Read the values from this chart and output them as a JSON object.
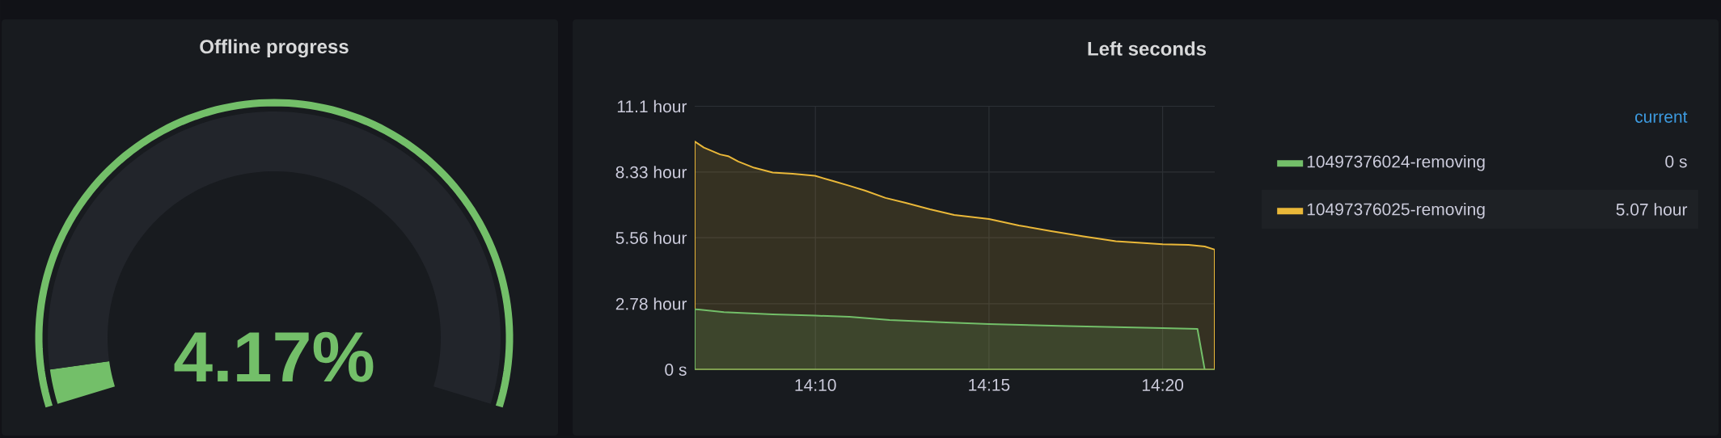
{
  "chart_data": [
    {
      "type": "donut",
      "title": "Offline progress",
      "categories": [
        null,
        null
      ],
      "values": [
        4.17,
        95.83
      ],
      "colors": [
        "#73bf69",
        "#22252b"
      ],
      "annotations": [
        "4.17%"
      ]
    },
    {
      "type": "area",
      "title": "Left seconds",
      "legend": "right",
      "legend_title": "current",
      "grid": true,
      "xlim": [
        14.1088,
        14.3583
      ],
      "xticks": [
        {
          "value": 14.1667,
          "label": "14:10"
        },
        {
          "value": 14.25,
          "label": "14:15"
        },
        {
          "value": 14.3333,
          "label": "14:20"
        }
      ],
      "ylim": [
        0,
        11.1
      ],
      "yticks": [
        {
          "value": 0,
          "label": "0 s"
        },
        {
          "value": 2.78,
          "label": "2.78 hour"
        },
        {
          "value": 5.56,
          "label": "5.56 hour"
        },
        {
          "value": 8.33,
          "label": "8.33 hour"
        },
        {
          "value": 11.1,
          "label": "11.1 hour"
        }
      ],
      "annotations": [
        "0 s",
        "5.07 hour"
      ],
      "series": [
        {
          "name": "10497376024-removing",
          "color": "#73bf69",
          "x": [
            14.1088,
            14.1228,
            14.1462,
            14.1667,
            14.183,
            14.2023,
            14.2295,
            14.25,
            14.2877,
            14.3333,
            14.35,
            14.3535,
            14.3583
          ],
          "values": [
            2.55,
            2.43,
            2.33,
            2.28,
            2.23,
            2.09,
            1.99,
            1.92,
            1.84,
            1.75,
            1.72,
            0,
            0
          ]
        },
        {
          "name": "10497376025-removing",
          "color": "#eab839",
          "x": [
            14.1088,
            14.1132,
            14.121,
            14.1248,
            14.1297,
            14.1373,
            14.1462,
            14.1558,
            14.1665,
            14.1752,
            14.183,
            14.1907,
            14.2003,
            14.21,
            14.2217,
            14.2333,
            14.25,
            14.2643,
            14.2798,
            14.2953,
            14.3108,
            14.3333,
            14.3457,
            14.3535,
            14.3583
          ],
          "values": [
            9.62,
            9.36,
            9.07,
            9.0,
            8.77,
            8.51,
            8.31,
            8.26,
            8.17,
            7.95,
            7.75,
            7.54,
            7.24,
            7.03,
            6.76,
            6.52,
            6.35,
            6.08,
            5.84,
            5.62,
            5.41,
            5.29,
            5.26,
            5.19,
            5.06
          ]
        }
      ]
    }
  ]
}
